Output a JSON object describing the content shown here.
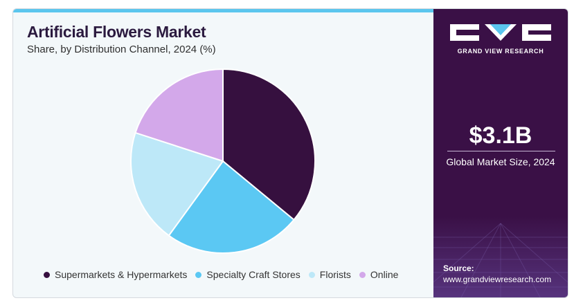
{
  "header": {
    "title": "Artificial Flowers Market",
    "subtitle": "Share, by Distribution Channel, 2024 (%)"
  },
  "chart_data": {
    "type": "pie",
    "title": "Artificial Flowers Market",
    "subtitle": "Share, by Distribution Channel, 2024 (%)",
    "categories": [
      "Supermarkets & Hypermarkets",
      "Specialty Craft Stores",
      "Florists",
      "Online"
    ],
    "values": [
      36,
      24,
      20,
      20
    ],
    "colors": [
      "#36103f",
      "#5bc8f3",
      "#bde8f8",
      "#d3a8ea"
    ],
    "legend_position": "bottom",
    "start_angle": "top, clockwise"
  },
  "sidebar": {
    "brand": "GRAND VIEW RESEARCH",
    "value": "$3.1B",
    "value_label": "Global Market Size, 2024",
    "source_label": "Source:",
    "source_url": "www.grandviewresearch.com"
  },
  "colors": {
    "sidebar_bg": "#3a1046",
    "accent": "#5bc6ee",
    "card_bg": "#f3f8fa"
  }
}
